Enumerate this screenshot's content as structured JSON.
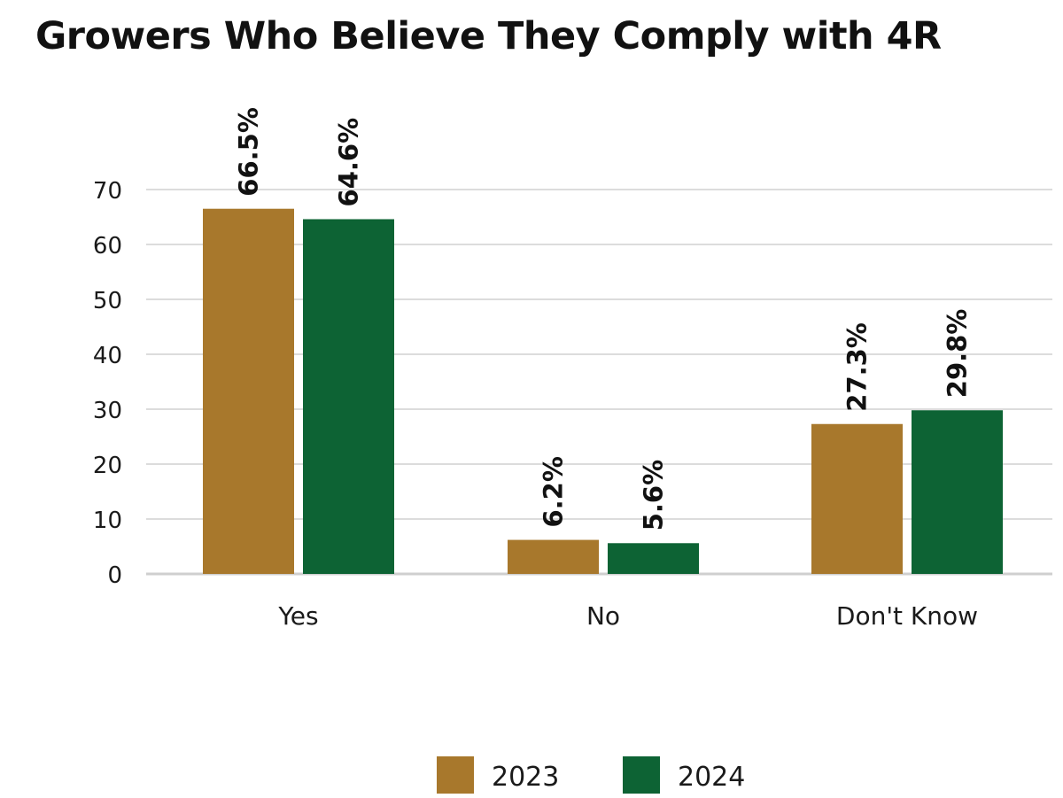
{
  "chart_data": {
    "type": "bar",
    "title": "Growers Who Believe They Comply with 4R",
    "categories": [
      "Yes",
      "No",
      "Don't Know"
    ],
    "series": [
      {
        "name": "2023",
        "color": "#A8782C",
        "values": [
          66.5,
          6.2,
          27.3
        ],
        "labels": [
          "66.5%",
          "6.2%",
          "27.3%"
        ]
      },
      {
        "name": "2024",
        "color": "#0D6334",
        "values": [
          64.6,
          5.6,
          29.8
        ],
        "labels": [
          "64.6%",
          "5.6%",
          "29.8%"
        ]
      }
    ],
    "yticks": [
      0,
      10,
      20,
      30,
      40,
      50,
      60,
      70
    ],
    "ylim": [
      0,
      70
    ],
    "grid": true,
    "legend_position": "bottom-center",
    "data_labels": "vertical-above-bars"
  }
}
